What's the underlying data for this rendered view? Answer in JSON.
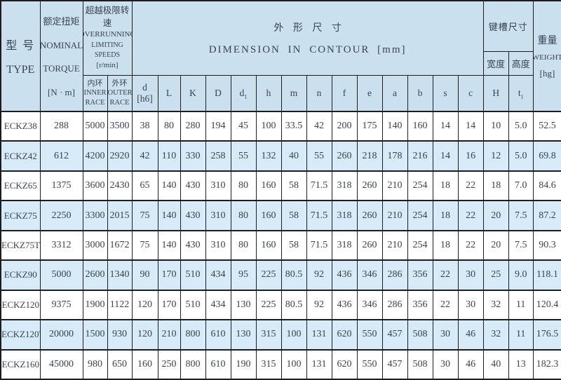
{
  "colors": {
    "header_bg": "#cbe0ee",
    "row_bg": "#ffffff",
    "row_alt_bg": "#d6eaf7",
    "border": "#1d1d1d",
    "text": "#39434f"
  },
  "header": {
    "type": {
      "zh": "型 号",
      "en": "TYPE"
    },
    "torque": {
      "zh": "额定扭矩",
      "en_line1": "NOMINAL",
      "en_line2": "TORQUE",
      "unit": "[N · m]"
    },
    "overrunning": {
      "zh": "超越极限转速",
      "en_line1": "OVERRUNNING",
      "en_line2": "LIMITING SPEEDS",
      "unit": "[r/min]"
    },
    "dimension": {
      "zh": "外 形 尺 寸",
      "en": "DIMENSION IN CONTOUR [mm]"
    },
    "keyway": {
      "zh": "键槽尺寸",
      "width": "宽度",
      "height": "高度"
    },
    "weight": {
      "zh": "重量",
      "en": "WEIGHT",
      "unit": "[hg]"
    },
    "sub_columns": [
      {
        "name": "col-inner-race",
        "zh": "内环",
        "en": [
          "INNER",
          "RACE"
        ]
      },
      {
        "name": "col-outer-race",
        "zh": "外环",
        "en": [
          "OUTER",
          "RACE"
        ]
      },
      {
        "name": "col-d-h6",
        "label": "d",
        "line2": "[h6]"
      },
      {
        "name": "col-L",
        "label": "L"
      },
      {
        "name": "col-K",
        "label": "K"
      },
      {
        "name": "col-D",
        "label": "D"
      },
      {
        "name": "col-d1",
        "label": "d",
        "sub": "1"
      },
      {
        "name": "col-h",
        "label": "h"
      },
      {
        "name": "col-m",
        "label": "m"
      },
      {
        "name": "col-n",
        "label": "n"
      },
      {
        "name": "col-f",
        "label": "f"
      },
      {
        "name": "col-e",
        "label": "e"
      },
      {
        "name": "col-a",
        "label": "a"
      },
      {
        "name": "col-b",
        "label": "b"
      },
      {
        "name": "col-s",
        "label": "s"
      },
      {
        "name": "col-c",
        "label": "c"
      },
      {
        "name": "col-H",
        "label": "H"
      },
      {
        "name": "col-t1",
        "label": "t",
        "sub": "1"
      }
    ]
  },
  "rows": [
    {
      "type": "ECKZ38",
      "values": [
        "288",
        "5000",
        "3500",
        "38",
        "80",
        "280",
        "194",
        "45",
        "100",
        "33.5",
        "42",
        "200",
        "175",
        "140",
        "160",
        "14",
        "14",
        "10",
        "5.0",
        "52.5"
      ]
    },
    {
      "type": "ECKZ42",
      "values": [
        "612",
        "4200",
        "2920",
        "42",
        "110",
        "330",
        "258",
        "55",
        "132",
        "40",
        "55",
        "260",
        "218",
        "178",
        "216",
        "14",
        "16",
        "12",
        "5.0",
        "69.8"
      ]
    },
    {
      "type": "ECKZ65",
      "values": [
        "1375",
        "3600",
        "2430",
        "65",
        "140",
        "430",
        "310",
        "80",
        "160",
        "58",
        "71.5",
        "318",
        "260",
        "210",
        "254",
        "18",
        "22",
        "18",
        "7.0",
        "84.6"
      ]
    },
    {
      "type": "ECKZ75",
      "values": [
        "2250",
        "3300",
        "2015",
        "75",
        "140",
        "430",
        "310",
        "80",
        "160",
        "58",
        "71.5",
        "318",
        "260",
        "210",
        "254",
        "18",
        "22",
        "20",
        "7.5",
        "87.2"
      ]
    },
    {
      "type": "ECKZ75T",
      "values": [
        "3312",
        "3000",
        "1672",
        "75",
        "140",
        "430",
        "310",
        "80",
        "160",
        "58",
        "71.5",
        "318",
        "260",
        "210",
        "254",
        "18",
        "22",
        "20",
        "7.5",
        "90.3"
      ]
    },
    {
      "type": "ECKZ90",
      "values": [
        "5000",
        "2600",
        "1340",
        "90",
        "170",
        "510",
        "434",
        "95",
        "225",
        "80.5",
        "92",
        "436",
        "346",
        "286",
        "356",
        "22",
        "30",
        "25",
        "9.0",
        "118.1"
      ]
    },
    {
      "type": "ECKZ120",
      "values": [
        "9375",
        "1900",
        "1122",
        "120",
        "170",
        "510",
        "434",
        "130",
        "225",
        "80.5",
        "92",
        "436",
        "346",
        "286",
        "356",
        "22",
        "30",
        "32",
        "11",
        "120.4"
      ]
    },
    {
      "type": "ECKZ120T",
      "values": [
        "20000",
        "1500",
        "930",
        "120",
        "210",
        "800",
        "610",
        "130",
        "315",
        "100",
        "131",
        "620",
        "550",
        "457",
        "508",
        "30",
        "46",
        "32",
        "11",
        "176.5"
      ]
    },
    {
      "type": "ECKZ160",
      "values": [
        "45000",
        "980",
        "650",
        "160",
        "250",
        "800",
        "610",
        "190",
        "315",
        "100",
        "131",
        "620",
        "550",
        "457",
        "508",
        "30",
        "46",
        "40",
        "13",
        "182.3"
      ]
    }
  ]
}
